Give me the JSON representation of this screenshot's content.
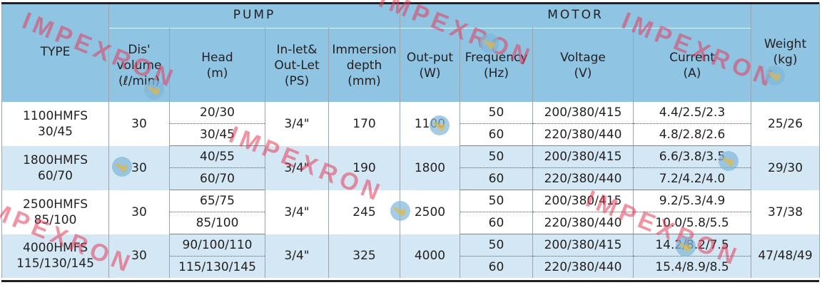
{
  "group_headers": {
    "pump": "PUMP",
    "motor": "MOTOR"
  },
  "column_headers": {
    "type": "TYPE",
    "discharge": [
      "Dis'",
      "volume",
      "(ℓ/min)"
    ],
    "head": [
      "Head",
      "(m)"
    ],
    "inlet": [
      "In-let&",
      "Out-Let",
      "(PS)"
    ],
    "immersion": [
      "Immersion",
      "depth",
      "(mm)"
    ],
    "output": [
      "Out-put",
      "(W)"
    ],
    "frequency": [
      "Frequency",
      "(Hz)"
    ],
    "voltage": [
      "Voltage",
      "(V)"
    ],
    "current": [
      "Current",
      "(A)"
    ],
    "weight": [
      "Weight",
      "(kg)"
    ]
  },
  "rows": [
    {
      "type": [
        "1100HMFS",
        "30/45"
      ],
      "discharge": "30",
      "head": [
        "20/30",
        "30/45"
      ],
      "inlet": "3/4\"",
      "immersion": "170",
      "output": "1100",
      "frequency": [
        "50",
        "60"
      ],
      "voltage": [
        "200/380/415",
        "220/380/440"
      ],
      "current": [
        "4.4/2.5/2.3",
        "4.8/2.8/2.6"
      ],
      "weight": "25/26"
    },
    {
      "type": [
        "1800HMFS",
        "60/70"
      ],
      "discharge": "30",
      "head": [
        "40/55",
        "60/70"
      ],
      "inlet": "3/4\"",
      "immersion": "190",
      "output": "1800",
      "frequency": [
        "50",
        "60"
      ],
      "voltage": [
        "200/380/415",
        "220/380/440"
      ],
      "current": [
        "6.6/3.8/3.5",
        "7.2/4.2/4.0"
      ],
      "weight": "29/30"
    },
    {
      "type": [
        "2500HMFS",
        "85/100"
      ],
      "discharge": "30",
      "head": [
        "65/75",
        "85/100"
      ],
      "inlet": "3/4\"",
      "immersion": "245",
      "output": "2500",
      "frequency": [
        "50",
        "60"
      ],
      "voltage": [
        "200/380/415",
        "220/380/440"
      ],
      "current": [
        "9.2/5.3/4.9",
        "10.0/5.8/5.5"
      ],
      "weight": "37/38"
    },
    {
      "type": [
        "4000HMFS",
        "115/130/145"
      ],
      "discharge": "30",
      "head": [
        "90/100/110",
        "115/130/145"
      ],
      "inlet": "3/4\"",
      "immersion": "325",
      "output": "4000",
      "frequency": [
        "50",
        "60"
      ],
      "voltage": [
        "200/380/415",
        "220/380/440"
      ],
      "current": [
        "14.2/8.2/7.5",
        "15.4/8.9/8.5"
      ],
      "weight": "47/48/49"
    }
  ],
  "watermark": "IMPEXRON",
  "colors": {
    "header": "#8fc4e3",
    "band": "#d3e8f4",
    "watermark": "#e43c5a",
    "rule": "#231f20"
  }
}
